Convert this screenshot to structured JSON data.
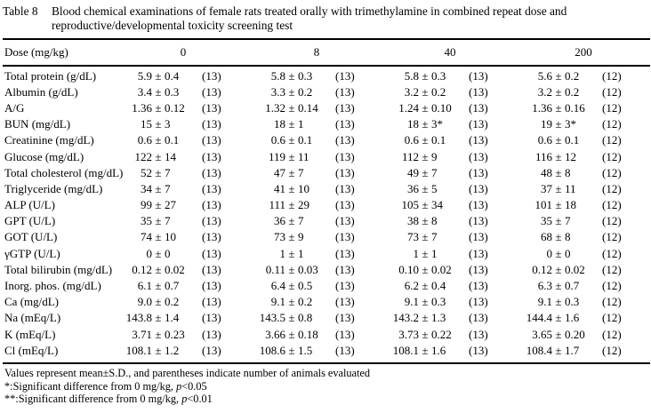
{
  "caption": {
    "label": "Table 8",
    "title": "Blood chemical examinations of female rats treated orally with trimethylamine in combined repeat dose and reproductive/developmental toxicity screening test"
  },
  "table": {
    "pm": "±",
    "dose_label": "Dose (mg/kg)",
    "doses": [
      "0",
      "8",
      "40",
      "200"
    ],
    "rows": [
      {
        "label": "Total protein (g/dL)",
        "cells": [
          {
            "m": "5.9",
            "s": "0.4",
            "n": "(13)"
          },
          {
            "m": "5.8",
            "s": "0.3",
            "n": "(13)"
          },
          {
            "m": "5.8",
            "s": "0.3",
            "n": "(13)"
          },
          {
            "m": "5.6",
            "s": "0.2",
            "n": "(12)"
          }
        ]
      },
      {
        "label": "Albumin (g/dL)",
        "cells": [
          {
            "m": "3.4",
            "s": "0.3",
            "n": "(13)"
          },
          {
            "m": "3.3",
            "s": "0.2",
            "n": "(13)"
          },
          {
            "m": "3.2",
            "s": "0.2",
            "n": "(13)"
          },
          {
            "m": "3.2",
            "s": "0.2",
            "n": "(12)"
          }
        ]
      },
      {
        "label": "A/G",
        "cells": [
          {
            "m": "1.36",
            "s": "0.12",
            "n": "(13)"
          },
          {
            "m": "1.32",
            "s": "0.14",
            "n": "(13)"
          },
          {
            "m": "1.24",
            "s": "0.10",
            "n": "(13)"
          },
          {
            "m": "1.36",
            "s": "0.16",
            "n": "(12)"
          }
        ]
      },
      {
        "label": "BUN (mg/dL)",
        "cells": [
          {
            "m": "15",
            "s": "3",
            "n": "(13)"
          },
          {
            "m": "18",
            "s": "1",
            "n": "(13)"
          },
          {
            "m": "18",
            "s": "3*",
            "n": "(13)"
          },
          {
            "m": "19",
            "s": "3*",
            "n": "(12)"
          }
        ]
      },
      {
        "label": "Creatinine (mg/dL)",
        "cells": [
          {
            "m": "0.6",
            "s": "0.1",
            "n": "(13)"
          },
          {
            "m": "0.6",
            "s": "0.1",
            "n": "(13)"
          },
          {
            "m": "0.6",
            "s": "0.1",
            "n": "(13)"
          },
          {
            "m": "0.6",
            "s": "0.1",
            "n": "(12)"
          }
        ]
      },
      {
        "label": "Glucose (mg/dL)",
        "cells": [
          {
            "m": "122",
            "s": "14",
            "n": "(13)"
          },
          {
            "m": "119",
            "s": "11",
            "n": "(13)"
          },
          {
            "m": "112",
            "s": "9",
            "n": "(13)"
          },
          {
            "m": "116",
            "s": "12",
            "n": "(12)"
          }
        ]
      },
      {
        "label": "Total cholesterol (mg/dL)",
        "cells": [
          {
            "m": "52",
            "s": "7",
            "n": "(13)"
          },
          {
            "m": "47",
            "s": "7",
            "n": "(13)"
          },
          {
            "m": "49",
            "s": "7",
            "n": "(13)"
          },
          {
            "m": "48",
            "s": "8",
            "n": "(12)"
          }
        ]
      },
      {
        "label": "Triglyceride (mg/dL)",
        "cells": [
          {
            "m": "34",
            "s": "7",
            "n": "(13)"
          },
          {
            "m": "41",
            "s": "10",
            "n": "(13)"
          },
          {
            "m": "36",
            "s": "5",
            "n": "(13)"
          },
          {
            "m": "37",
            "s": "11",
            "n": "(12)"
          }
        ]
      },
      {
        "label": "ALP (U/L)",
        "cells": [
          {
            "m": "99",
            "s": "27",
            "n": "(13)"
          },
          {
            "m": "111",
            "s": "29",
            "n": "(13)"
          },
          {
            "m": "105",
            "s": "34",
            "n": "(13)"
          },
          {
            "m": "101",
            "s": "18",
            "n": "(12)"
          }
        ]
      },
      {
        "label": "GPT (U/L)",
        "cells": [
          {
            "m": "35",
            "s": "7",
            "n": "(13)"
          },
          {
            "m": "36",
            "s": "7",
            "n": "(13)"
          },
          {
            "m": "38",
            "s": "8",
            "n": "(13)"
          },
          {
            "m": "35",
            "s": "7",
            "n": "(12)"
          }
        ]
      },
      {
        "label": "GOT (U/L)",
        "cells": [
          {
            "m": "74",
            "s": "10",
            "n": "(13)"
          },
          {
            "m": "73",
            "s": "9",
            "n": "(13)"
          },
          {
            "m": "73",
            "s": "7",
            "n": "(13)"
          },
          {
            "m": "68",
            "s": "8",
            "n": "(12)"
          }
        ]
      },
      {
        "label": "γGTP (U/L)",
        "cells": [
          {
            "m": "0",
            "s": "0",
            "n": "(13)"
          },
          {
            "m": "1",
            "s": "1",
            "n": "(13)"
          },
          {
            "m": "1",
            "s": "1",
            "n": "(13)"
          },
          {
            "m": "0",
            "s": "0",
            "n": "(12)"
          }
        ]
      },
      {
        "label": "Total bilirubin (mg/dL)",
        "cells": [
          {
            "m": "0.12",
            "s": "0.02",
            "n": "(13)"
          },
          {
            "m": "0.11",
            "s": "0.03",
            "n": "(13)"
          },
          {
            "m": "0.10",
            "s": "0.02",
            "n": "(13)"
          },
          {
            "m": "0.12",
            "s": "0.02",
            "n": "(12)"
          }
        ]
      },
      {
        "label": "Inorg. phos. (mg/dL)",
        "cells": [
          {
            "m": "6.1",
            "s": "0.7",
            "n": "(13)"
          },
          {
            "m": "6.4",
            "s": "0.5",
            "n": "(13)"
          },
          {
            "m": "6.2",
            "s": "0.4",
            "n": "(13)"
          },
          {
            "m": "6.3",
            "s": "0.7",
            "n": "(12)"
          }
        ]
      },
      {
        "label": "Ca (mg/dL)",
        "cells": [
          {
            "m": "9.0",
            "s": "0.2",
            "n": "(13)"
          },
          {
            "m": "9.1",
            "s": "0.2",
            "n": "(13)"
          },
          {
            "m": "9.1",
            "s": "0.3",
            "n": "(13)"
          },
          {
            "m": "9.1",
            "s": "0.3",
            "n": "(12)"
          }
        ]
      },
      {
        "label": "Na (mEq/L)",
        "cells": [
          {
            "m": "143.8",
            "s": "1.4",
            "n": "(13)"
          },
          {
            "m": "143.5",
            "s": "0.8",
            "n": "(13)"
          },
          {
            "m": "143.2",
            "s": "1.3",
            "n": "(13)"
          },
          {
            "m": "144.4",
            "s": "1.6",
            "n": "(12)"
          }
        ]
      },
      {
        "label": "K (mEq/L)",
        "cells": [
          {
            "m": "3.71",
            "s": "0.23",
            "n": "(13)"
          },
          {
            "m": "3.66",
            "s": "0.18",
            "n": "(13)"
          },
          {
            "m": "3.73",
            "s": "0.22",
            "n": "(13)"
          },
          {
            "m": "3.65",
            "s": "0.20",
            "n": "(12)"
          }
        ]
      },
      {
        "label": "Cl (mEq/L)",
        "cells": [
          {
            "m": "108.1",
            "s": "1.2",
            "n": "(13)"
          },
          {
            "m": "108.6",
            "s": "1.5",
            "n": "(13)"
          },
          {
            "m": "108.1",
            "s": "1.6",
            "n": "(13)"
          },
          {
            "m": "108.4",
            "s": "1.7",
            "n": "(12)"
          }
        ]
      }
    ]
  },
  "notes": {
    "values": "Values represent mean±S.D., and parentheses indicate number of animals evaluated",
    "sig05": {
      "prefix": "*:Significant difference from 0 mg/kg, ",
      "p": "p",
      "suffix": "<0.05"
    },
    "sig01": {
      "prefix": "**:Significant difference from 0 mg/kg, ",
      "p": "p",
      "suffix": "<0.01"
    }
  }
}
